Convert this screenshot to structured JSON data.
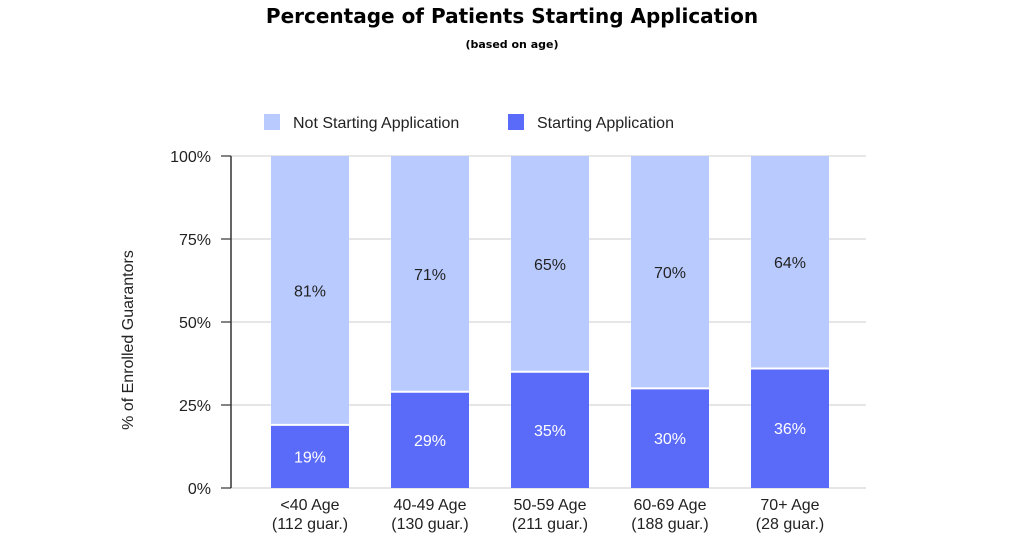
{
  "chart_data": {
    "type": "bar",
    "stacked": true,
    "title": "Percentage of Patients Starting Application",
    "subtitle": "(based on age)",
    "ylabel": "% of Enrolled Guarantors",
    "xlabel": "",
    "ylim": [
      0,
      100
    ],
    "yticks": [
      "0%",
      "25%",
      "50%",
      "75%",
      "100%"
    ],
    "yticks_values": [
      0,
      25,
      50,
      75,
      100
    ],
    "grid": true,
    "legend_position": "top",
    "categories": [
      [
        "<40 Age",
        "(112 guar.)"
      ],
      [
        "40-49 Age",
        "(130 guar.)"
      ],
      [
        "50-59 Age",
        "(211 guar.)"
      ],
      [
        "60-69 Age",
        "(188 guar.)"
      ],
      [
        "70+ Age",
        "(28 guar.)"
      ]
    ],
    "series": [
      {
        "name": "Starting Application",
        "color": "#5b6bf9",
        "values": [
          19,
          29,
          35,
          30,
          36
        ],
        "labels": [
          "19%",
          "29%",
          "35%",
          "30%",
          "36%"
        ]
      },
      {
        "name": "Not Starting Application",
        "color": "#b9caff",
        "values": [
          81,
          71,
          65,
          70,
          64
        ],
        "labels": [
          "81%",
          "71%",
          "65%",
          "70%",
          "64%"
        ]
      }
    ]
  }
}
